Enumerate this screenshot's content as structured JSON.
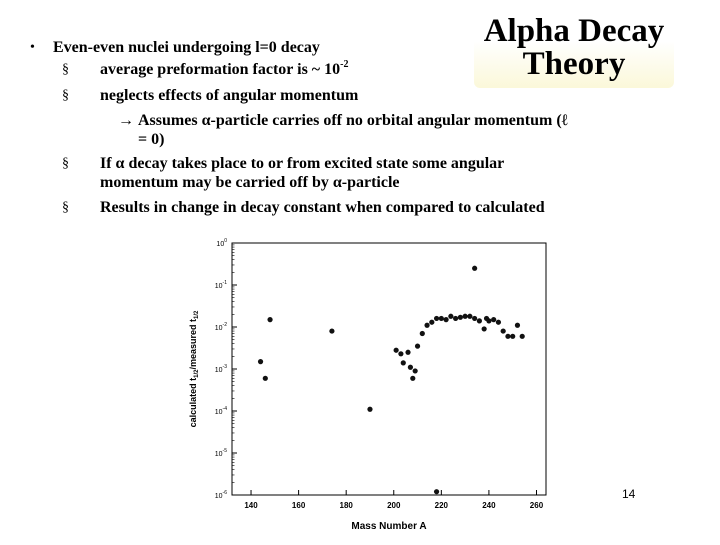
{
  "slide": {
    "title_line1": "Alpha Decay",
    "title_line2": "Theory",
    "bullets": [
      {
        "marker": "•",
        "text": "Even-even nuclei undergoing l=0 decay"
      },
      {
        "marker": "§",
        "text": "average preformation factor is ~ 10",
        "sup": "-2"
      },
      {
        "marker": "§",
        "text": "neglects effects of angular momentum"
      },
      {
        "marker": "→",
        "text": "Assumes α-particle carries off no orbital angular momentum (ℓ"
      },
      {
        "marker": "",
        "text": "= 0)"
      },
      {
        "marker": "§",
        "text": "If α decay takes place to or from excited state some angular"
      },
      {
        "marker": "",
        "text": "momentum may be carried off by α-particle"
      },
      {
        "marker": "§",
        "text": "Results in change in decay constant when compared to calculated"
      }
    ],
    "page_number": "14"
  },
  "chart_data": {
    "type": "scatter",
    "xlabel": "Mass Number A",
    "ylabel": "calculated t1/2/measured t1/2",
    "ylabel_parts": {
      "a": "calculated t",
      "a_sub": "1/2",
      "b": "/measured t",
      "b_sub": "1/2"
    },
    "x_ticks": [
      "140",
      "160",
      "180",
      "200",
      "220",
      "240",
      "260"
    ],
    "y_ticks": [
      {
        "base": "10",
        "exp": "0"
      },
      {
        "base": "10",
        "exp": "-1"
      },
      {
        "base": "10",
        "exp": "-2"
      },
      {
        "base": "10",
        "exp": "-3"
      },
      {
        "base": "10",
        "exp": "-4"
      },
      {
        "base": "10",
        "exp": "-5"
      },
      {
        "base": "10",
        "exp": "-6"
      }
    ],
    "xlim": [
      132,
      264
    ],
    "y_log10_lim": [
      -6,
      0
    ],
    "colors": {
      "marker": "#111111",
      "axis": "#000000"
    },
    "points": [
      {
        "x": 144,
        "y": 0.0015
      },
      {
        "x": 146,
        "y": 0.0006
      },
      {
        "x": 148,
        "y": 0.015
      },
      {
        "x": 174,
        "y": 0.008
      },
      {
        "x": 190,
        "y": 0.00011
      },
      {
        "x": 201,
        "y": 0.0028
      },
      {
        "x": 203,
        "y": 0.0023
      },
      {
        "x": 204,
        "y": 0.0014
      },
      {
        "x": 206,
        "y": 0.0025
      },
      {
        "x": 207,
        "y": 0.0011
      },
      {
        "x": 208,
        "y": 0.0006
      },
      {
        "x": 209,
        "y": 0.0009
      },
      {
        "x": 210,
        "y": 0.0035
      },
      {
        "x": 212,
        "y": 0.007
      },
      {
        "x": 214,
        "y": 0.011
      },
      {
        "x": 216,
        "y": 0.013
      },
      {
        "x": 218,
        "y": 1.2e-06
      },
      {
        "x": 218,
        "y": 0.016
      },
      {
        "x": 220,
        "y": 0.016
      },
      {
        "x": 222,
        "y": 0.015
      },
      {
        "x": 224,
        "y": 0.018
      },
      {
        "x": 226,
        "y": 0.016
      },
      {
        "x": 228,
        "y": 0.017
      },
      {
        "x": 230,
        "y": 0.018
      },
      {
        "x": 232,
        "y": 0.018
      },
      {
        "x": 234,
        "y": 0.25
      },
      {
        "x": 234,
        "y": 0.016
      },
      {
        "x": 236,
        "y": 0.014
      },
      {
        "x": 238,
        "y": 0.009
      },
      {
        "x": 239,
        "y": 0.016
      },
      {
        "x": 240,
        "y": 0.014
      },
      {
        "x": 242,
        "y": 0.015
      },
      {
        "x": 244,
        "y": 0.013
      },
      {
        "x": 246,
        "y": 0.008
      },
      {
        "x": 248,
        "y": 0.006
      },
      {
        "x": 250,
        "y": 0.006
      },
      {
        "x": 252,
        "y": 0.011
      },
      {
        "x": 254,
        "y": 0.006
      }
    ]
  }
}
